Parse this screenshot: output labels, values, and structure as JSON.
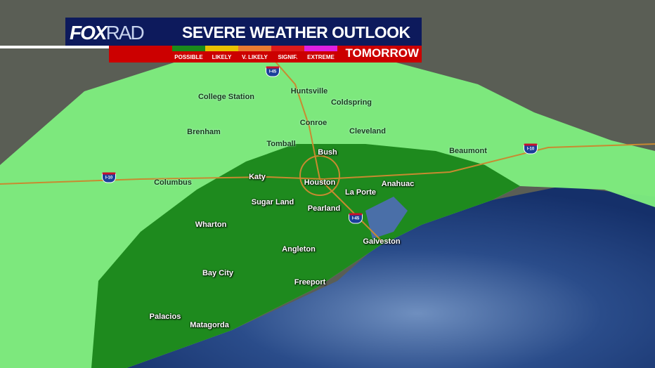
{
  "header": {
    "logo": "FOXRAD",
    "logo_fox": "FOX",
    "logo_rad": "RAD",
    "title": "SEVERE WEATHER OUTLOOK",
    "day": "TOMORROW"
  },
  "legend": [
    {
      "label": "POSSIBLE",
      "color": "#1a8a1a"
    },
    {
      "label": "LIKELY",
      "color": "#e8c000"
    },
    {
      "label": "V. LIKELY",
      "color": "#e87a30"
    },
    {
      "label": "SIGNIF.",
      "color": "#dd1a1a"
    },
    {
      "label": "EXTREME",
      "color": "#e020e0"
    }
  ],
  "risk_areas": [
    {
      "level": "POSSIBLE (outer)",
      "color": "#7fef7f"
    },
    {
      "level": "POSSIBLE (inner)",
      "color": "#1e8a1e"
    }
  ],
  "highways": [
    "I-45",
    "I-10"
  ],
  "cities": [
    "College Station",
    "Huntsville",
    "Coldspring",
    "Brenham",
    "Conroe",
    "Cleveland",
    "Tomball",
    "Bush",
    "Beaumont",
    "Columbus",
    "Katy",
    "Houston",
    "La Porte",
    "Anahuac",
    "Sugar Land",
    "Pearland",
    "Wharton",
    "Angleton",
    "Galveston",
    "Bay City",
    "Freeport",
    "Palacios",
    "Matagorda"
  ]
}
